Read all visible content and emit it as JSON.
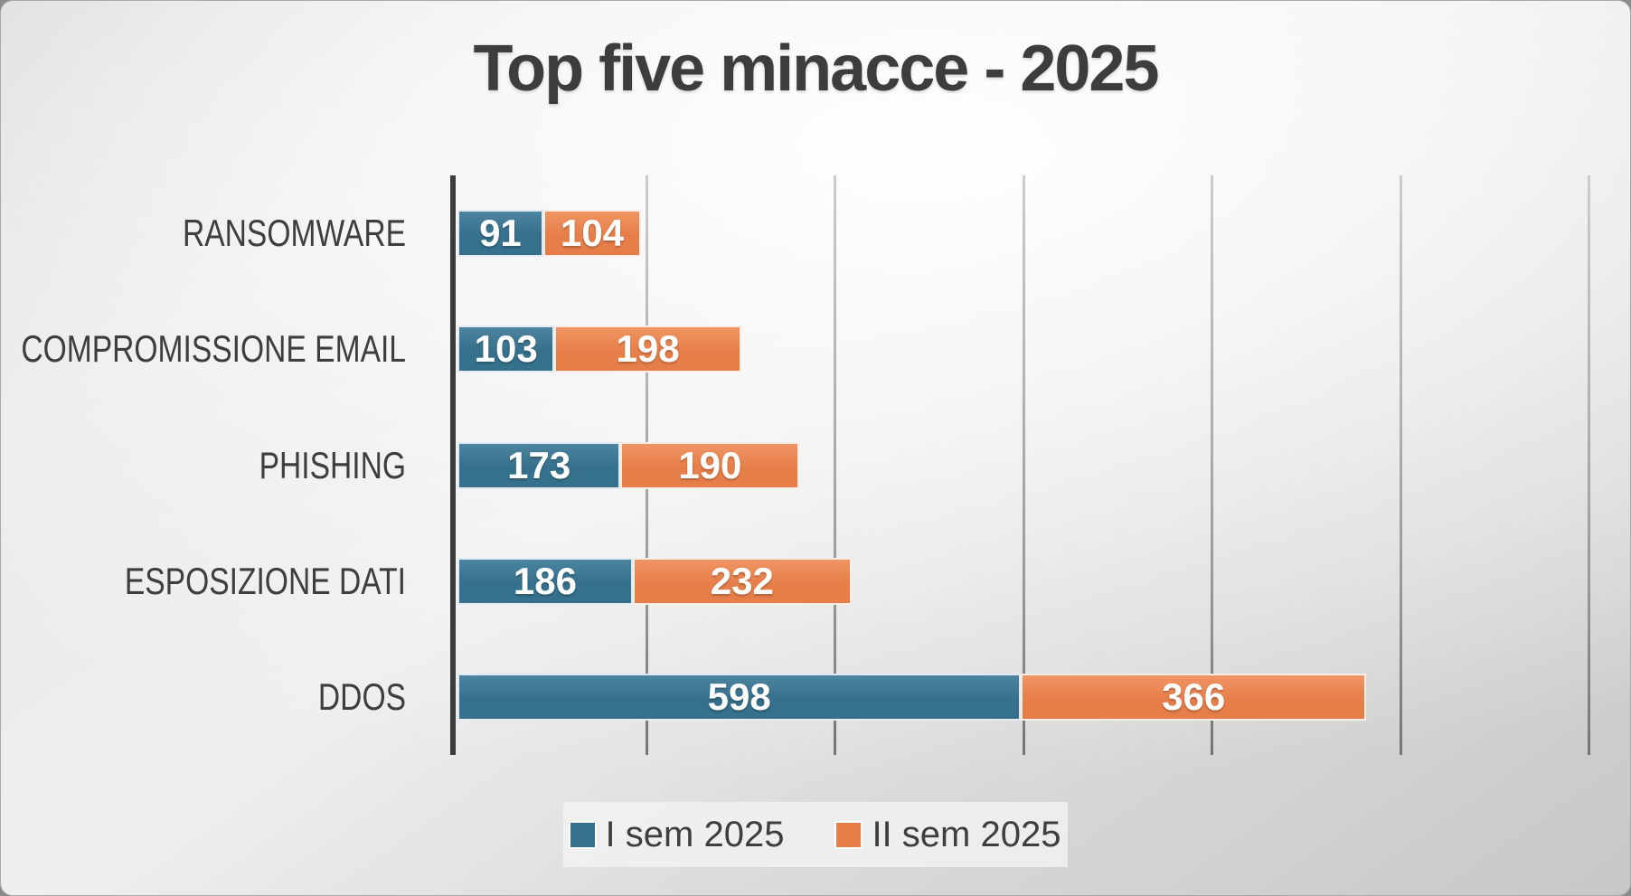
{
  "slide": {
    "title": "Top five minacce - 2025"
  },
  "chart_data": {
    "type": "bar",
    "orientation": "horizontal",
    "stacked": true,
    "title": "Top five minacce - 2025",
    "xlabel": "",
    "ylabel": "",
    "categories": [
      "RANSOMWARE",
      "COMPROMISSIONE EMAIL",
      "PHISHING",
      "ESPOSIZIONE DATI",
      "DDOS"
    ],
    "series": [
      {
        "name": "I sem 2025",
        "color": "#35708C",
        "color_top": "#4D84A0",
        "values": [
          91,
          103,
          173,
          186,
          598
        ]
      },
      {
        "name": "II sem 2025",
        "color": "#E67E49",
        "color_top": "#EF9564",
        "values": [
          104,
          198,
          190,
          232,
          366
        ]
      }
    ],
    "xlim": [
      0,
      1250
    ],
    "gridlines_at": [
      200,
      400,
      600,
      800,
      1000,
      1200
    ],
    "grid": true,
    "legend_position": "bottom",
    "value_labels": "white bold numbers centered inside each segment"
  },
  "colors": {
    "series_1": "#35708C",
    "series_2": "#E67E49",
    "axis_line": "#3C3C3C",
    "gridline_mid": "#9B9B9B",
    "category_text": "#3E3E3E",
    "title_text": "#3D3D3D",
    "value_text": "#FFFFFF",
    "legend_background": "#EFEFEF"
  }
}
